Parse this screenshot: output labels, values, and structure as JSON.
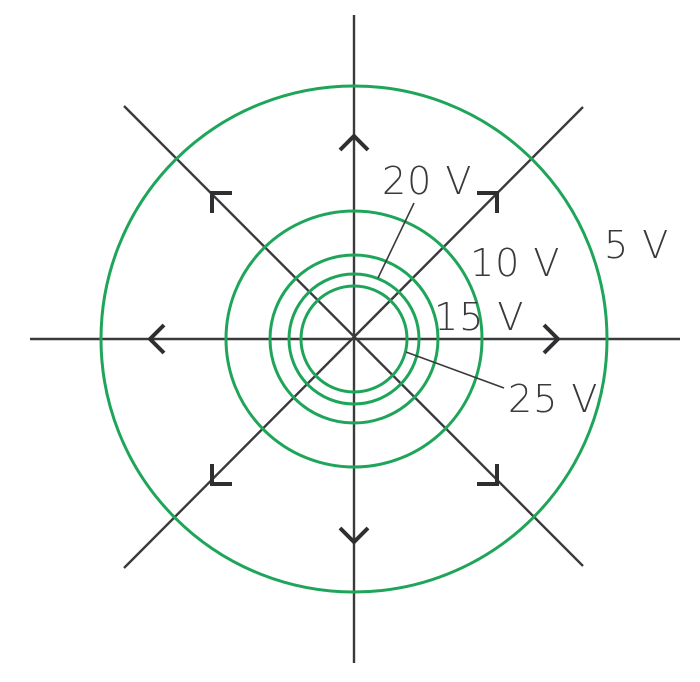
{
  "diagram": {
    "labels": {
      "v5": "5 V",
      "v10": "10 V",
      "v15": "15 V",
      "v20": "20 V",
      "v25": "25 V"
    },
    "colors": {
      "equipotential": "#1fa55a",
      "field_lines": "#3a3a3c"
    },
    "field_line_count": 8,
    "equipotential_count": 5
  }
}
